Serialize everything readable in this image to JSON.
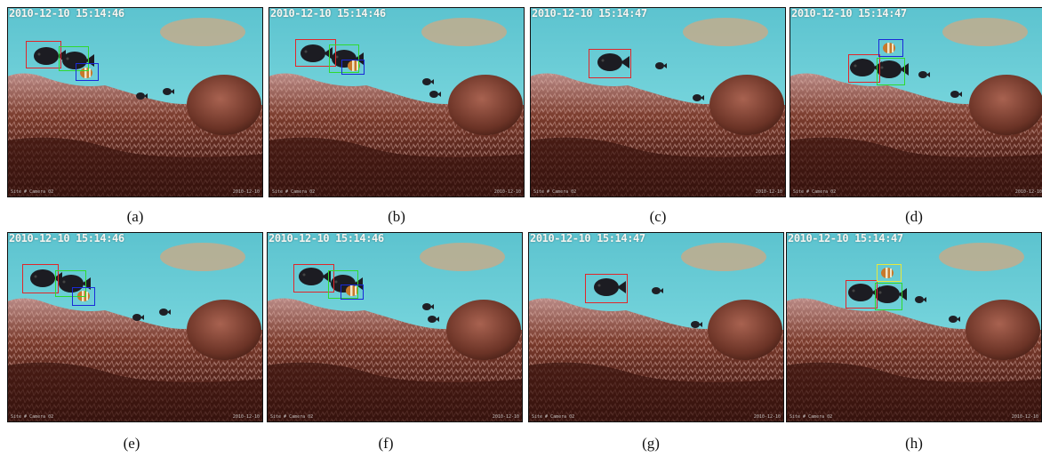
{
  "colors": {
    "red": "#e0262a",
    "green": "#2fd92f",
    "blue": "#1a2ad8",
    "yellow": "#e8e83a"
  },
  "panels": [
    {
      "caption": "(a)",
      "timestamp": "2010-12-10 15:14:46",
      "osd_left": "Site # Camera 02",
      "osd_right": "2010-12-10"
    },
    {
      "caption": "(b)",
      "timestamp": "2010-12-10 15:14:46",
      "osd_left": "Site # Camera 02",
      "osd_right": "2010-12-10"
    },
    {
      "caption": "(c)",
      "timestamp": "2010-12-10 15:14:47",
      "osd_left": "Site # Camera 02",
      "osd_right": "2010-12-10"
    },
    {
      "caption": "(d)",
      "timestamp": "2010-12-10 15:14:47",
      "osd_left": "Site # Camera 02",
      "osd_right": "2010-12-10"
    },
    {
      "caption": "(e)",
      "timestamp": "2010-12-10 15:14:46",
      "osd_left": "Site # Camera 02",
      "osd_right": "2010-12-10"
    },
    {
      "caption": "(f)",
      "timestamp": "2010-12-10 15:14:46",
      "osd_left": "Site # Camera 02",
      "osd_right": "2010-12-10"
    },
    {
      "caption": "(g)",
      "timestamp": "2010-12-10 15:14:47",
      "osd_left": "Site # Camera 02",
      "osd_right": "2010-12-10"
    },
    {
      "caption": "(h)",
      "timestamp": "2010-12-10 15:14:47",
      "osd_left": "Site # Camera 02",
      "osd_right": "2010-12-10"
    }
  ]
}
